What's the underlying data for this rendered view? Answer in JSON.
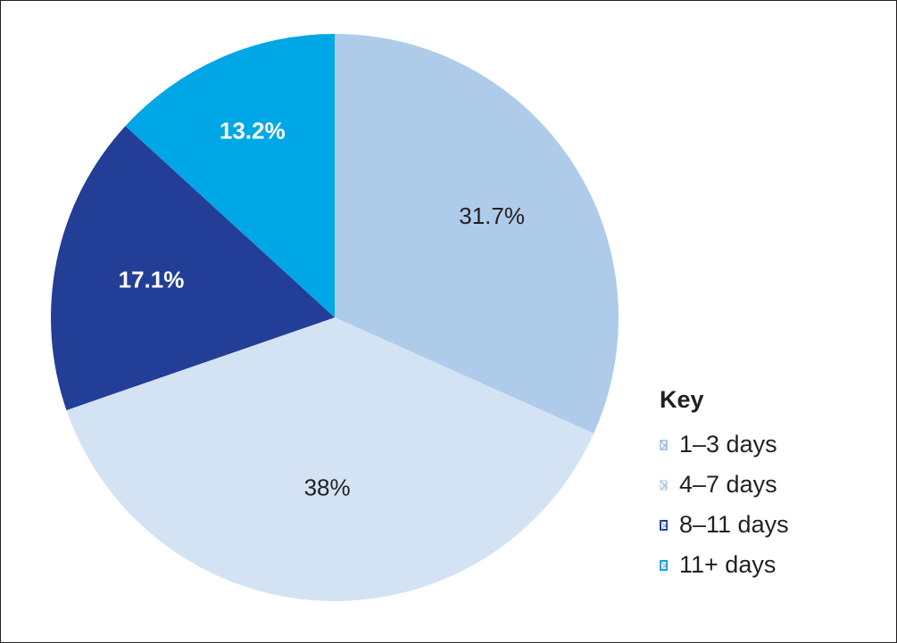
{
  "chart_data": {
    "type": "pie",
    "title": "",
    "categories": [
      "1–3 days",
      "4–7 days",
      "8–11 days",
      "11+ days"
    ],
    "values": [
      31.7,
      38,
      17.1,
      13.2
    ],
    "labels": [
      "31.7%",
      "38%",
      "17.1%",
      "13.2%"
    ],
    "colors": [
      "#aecbea",
      "#d3e3f4",
      "#233e96",
      "#00a7e6"
    ],
    "label_colors": [
      "#231f20",
      "#231f20",
      "#ffffff",
      "#ffffff"
    ],
    "label_bold": [
      false,
      false,
      true,
      true
    ],
    "start_angle_deg": 0,
    "direction": "clockwise",
    "legend_position": "bottom-right"
  },
  "legend": {
    "title": "Key",
    "items": [
      "1–3 days",
      "4–7 days",
      "8–11 days",
      "11+ days"
    ]
  }
}
